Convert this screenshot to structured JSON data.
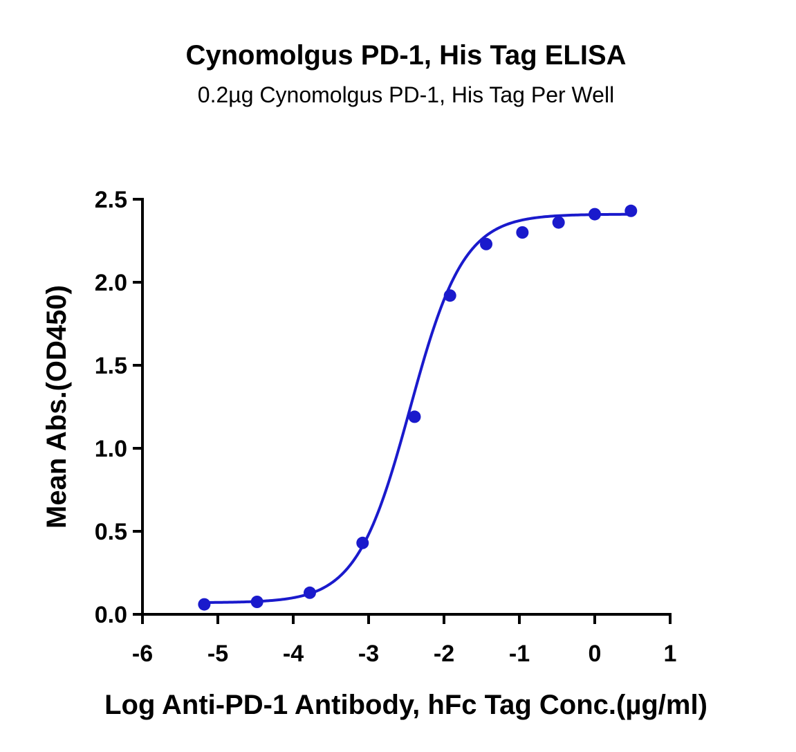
{
  "chart_data": {
    "type": "scatter",
    "title": "Cynomolgus PD-1, His Tag ELISA",
    "subtitle": "0.2µg Cynomolgus PD-1, His Tag Per Well",
    "xlabel": "Log Anti-PD-1 Antibody, hFc Tag Conc.(µg/ml)",
    "ylabel": "Mean Abs.(OD450)",
    "xlim": [
      -6,
      1
    ],
    "ylim": [
      0,
      2.5
    ],
    "xticks": [
      -6,
      -5,
      -4,
      -3,
      -2,
      -1,
      0,
      1
    ],
    "xtick_labels": [
      "-6",
      "-5",
      "-4",
      "-3",
      "-2",
      "-1",
      "0",
      "1"
    ],
    "yticks": [
      0,
      0.5,
      1.0,
      1.5,
      2.0,
      2.5
    ],
    "ytick_labels": [
      "0.0",
      "0.5",
      "1.0",
      "1.5",
      "2.0",
      "2.5"
    ],
    "grid": false,
    "legend": "none",
    "series": [
      {
        "color": "#1a1acc",
        "marker": "circle",
        "fit": "4PL sigmoid",
        "x": [
          -5.18,
          -4.48,
          -3.78,
          -3.08,
          -2.39,
          -1.92,
          -1.44,
          -0.96,
          -0.48,
          0.0,
          0.48
        ],
        "y": [
          0.06,
          0.075,
          0.13,
          0.43,
          1.19,
          1.92,
          2.23,
          2.3,
          2.36,
          2.41,
          2.43
        ]
      }
    ],
    "fit_curve": {
      "bottom": 0.07,
      "top": 2.41,
      "log_ec50": -2.45,
      "hill_slope": 1.22,
      "x_range": [
        -5.18,
        0.48
      ]
    }
  }
}
